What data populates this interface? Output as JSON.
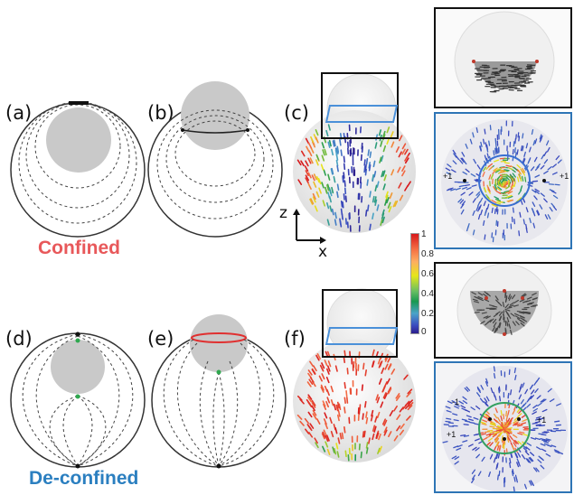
{
  "panel_labels": {
    "a": "(a)",
    "b": "(b)",
    "c": "(c)",
    "d": "(d)",
    "e": "(e)",
    "f": "(f)"
  },
  "regimes": {
    "top": "Confined",
    "bottom": "De-confined"
  },
  "colors": {
    "confined": "#e8585a",
    "deconfined": "#2b7fc0",
    "panel_border": "#2e75b6",
    "selection_box": "#4a90d9",
    "red_ring": "#e03030",
    "green_dot": "#2fa84f"
  },
  "axes": {
    "z": "z",
    "x": "x"
  },
  "colorbar": {
    "ticks": [
      "1",
      "0.8",
      "0.6",
      "0.4",
      "0.2",
      "0"
    ],
    "scale": "jet"
  },
  "defect_labels": {
    "top_left": "+1",
    "top_right": "+1",
    "bottom_minus": "-1",
    "bottom_left": "+1",
    "bottom_right": "+1"
  }
}
